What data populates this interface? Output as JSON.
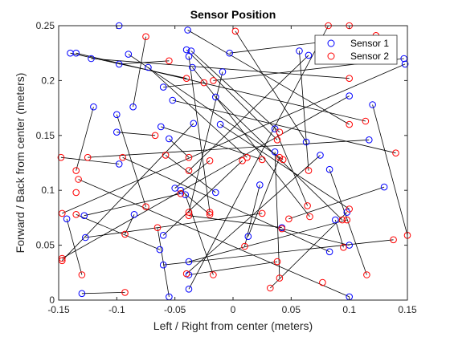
{
  "chart_data": {
    "type": "scatter",
    "title": "Sensor Position",
    "xlabel": "Left / Right from center (meters)",
    "ylabel": "Forward / Back from center (meters)",
    "xlim": [
      -0.15,
      0.15
    ],
    "ylim": [
      0,
      0.25
    ],
    "xticks": [
      "-0.15",
      "-0.1",
      "-0.05",
      "0",
      "0.05",
      "0.1",
      "0.15"
    ],
    "yticks": [
      "0",
      "0.05",
      "0.1",
      "0.15",
      "0.2",
      "0.25"
    ],
    "legend_position": "top-right",
    "connections": "line segments join each Sensor 1 point to its paired Sensor 2 point",
    "series": [
      {
        "name": "Sensor 1",
        "color": "#0000ff",
        "points": [
          [
            -0.098,
            0.25
          ],
          [
            -0.039,
            0.246
          ],
          [
            -0.14,
            0.225
          ],
          [
            -0.135,
            0.225
          ],
          [
            -0.122,
            0.22
          ],
          [
            -0.09,
            0.224
          ],
          [
            -0.04,
            0.228
          ],
          [
            -0.036,
            0.227
          ],
          [
            -0.038,
            0.222
          ],
          [
            -0.098,
            0.215
          ],
          [
            -0.073,
            0.212
          ],
          [
            -0.035,
            0.212
          ],
          [
            -0.009,
            0.208
          ],
          [
            -0.003,
            0.225
          ],
          [
            0.057,
            0.227
          ],
          [
            0.065,
            0.223
          ],
          [
            0.147,
            0.22
          ],
          [
            0.148,
            0.215
          ],
          [
            -0.12,
            0.176
          ],
          [
            -0.1,
            0.169
          ],
          [
            -0.1,
            0.153
          ],
          [
            -0.086,
            0.176
          ],
          [
            -0.06,
            0.194
          ],
          [
            -0.052,
            0.182
          ],
          [
            -0.034,
            0.161
          ],
          [
            -0.062,
            0.158
          ],
          [
            -0.055,
            0.147
          ],
          [
            -0.015,
            0.185
          ],
          [
            -0.011,
            0.16
          ],
          [
            0.036,
            0.156
          ],
          [
            0.063,
            0.144
          ],
          [
            0.1,
            0.186
          ],
          [
            0.12,
            0.178
          ],
          [
            0.117,
            0.146
          ],
          [
            0.036,
            0.135
          ],
          [
            -0.05,
            0.102
          ],
          [
            -0.045,
            0.1
          ],
          [
            -0.041,
            0.096
          ],
          [
            -0.015,
            0.098
          ],
          [
            0.023,
            0.105
          ],
          [
            0.075,
            0.132
          ],
          [
            0.083,
            0.119
          ],
          [
            0.13,
            0.103
          ],
          [
            -0.098,
            0.124
          ],
          [
            -0.085,
            0.078
          ],
          [
            -0.143,
            0.074
          ],
          [
            -0.128,
            0.077
          ],
          [
            -0.127,
            0.057
          ],
          [
            -0.06,
            0.059
          ],
          [
            -0.063,
            0.046
          ],
          [
            -0.06,
            0.032
          ],
          [
            0.013,
            0.058
          ],
          [
            0.042,
            0.066
          ],
          [
            0.1,
            0.05
          ],
          [
            0.098,
            0.08
          ],
          [
            0.088,
            0.073
          ],
          [
            0.083,
            0.044
          ],
          [
            -0.038,
            0.035
          ],
          [
            -0.038,
            0.023
          ],
          [
            -0.038,
            0.01
          ],
          [
            -0.13,
            0.006
          ],
          [
            -0.055,
            0.003
          ],
          [
            0.1,
            0.003
          ]
        ]
      },
      {
        "name": "Sensor 2",
        "color": "#ff0000",
        "points": [
          [
            -0.148,
            0.13
          ],
          [
            -0.075,
            0.24
          ],
          [
            -0.055,
            0.218
          ],
          [
            -0.04,
            0.202
          ],
          [
            -0.025,
            0.198
          ],
          [
            -0.017,
            0.2
          ],
          [
            0.002,
            0.245
          ],
          [
            0.082,
            0.25
          ],
          [
            0.1,
            0.25
          ],
          [
            0.123,
            0.241
          ],
          [
            0.1,
            0.202
          ],
          [
            0.038,
            0.146
          ],
          [
            0.04,
            0.153
          ],
          [
            0.1,
            0.16
          ],
          [
            0.114,
            0.163
          ],
          [
            -0.125,
            0.13
          ],
          [
            -0.135,
            0.118
          ],
          [
            -0.133,
            0.11
          ],
          [
            -0.135,
            0.098
          ],
          [
            -0.095,
            0.13
          ],
          [
            -0.067,
            0.15
          ],
          [
            -0.058,
            0.132
          ],
          [
            -0.038,
            0.13
          ],
          [
            -0.038,
            0.118
          ],
          [
            -0.02,
            0.127
          ],
          [
            0.008,
            0.127
          ],
          [
            0.012,
            0.13
          ],
          [
            0.025,
            0.128
          ],
          [
            0.04,
            0.13
          ],
          [
            0.043,
            0.128
          ],
          [
            0.065,
            0.118
          ],
          [
            0.14,
            0.134
          ],
          [
            -0.147,
            0.079
          ],
          [
            -0.135,
            0.078
          ],
          [
            -0.093,
            0.06
          ],
          [
            -0.075,
            0.085
          ],
          [
            -0.045,
            0.097
          ],
          [
            -0.038,
            0.08
          ],
          [
            -0.038,
            0.077
          ],
          [
            -0.02,
            0.078
          ],
          [
            -0.02,
            0.08
          ],
          [
            0.025,
            0.079
          ],
          [
            0.048,
            0.074
          ],
          [
            0.064,
            0.086
          ],
          [
            0.066,
            0.076
          ],
          [
            0.094,
            0.073
          ],
          [
            0.098,
            0.073
          ],
          [
            0.1,
            0.083
          ],
          [
            -0.147,
            0.038
          ],
          [
            -0.147,
            0.036
          ],
          [
            -0.065,
            0.066
          ],
          [
            0.01,
            0.049
          ],
          [
            0.038,
            0.035
          ],
          [
            0.042,
            0.065
          ],
          [
            0.138,
            0.055
          ],
          [
            0.15,
            0.059
          ],
          [
            0.095,
            0.048
          ],
          [
            -0.13,
            0.023
          ],
          [
            -0.093,
            0.007
          ],
          [
            -0.04,
            0.024
          ],
          [
            -0.017,
            0.023
          ],
          [
            0.032,
            0.011
          ],
          [
            0.04,
            0.02
          ],
          [
            0.077,
            0.016
          ],
          [
            0.115,
            0.023
          ]
        ]
      }
    ],
    "pairs": [
      [
        0,
        8
      ],
      [
        1,
        13
      ],
      [
        2,
        3
      ],
      [
        3,
        14
      ],
      [
        4,
        10
      ],
      [
        5,
        29
      ],
      [
        6,
        11
      ],
      [
        7,
        12
      ],
      [
        8,
        40
      ],
      [
        9,
        2
      ],
      [
        10,
        26
      ],
      [
        11,
        44
      ],
      [
        12,
        37
      ],
      [
        13,
        9
      ],
      [
        14,
        30
      ],
      [
        15,
        23
      ],
      [
        16,
        5
      ],
      [
        17,
        32
      ],
      [
        18,
        16
      ],
      [
        19,
        35
      ],
      [
        20,
        20
      ],
      [
        21,
        1
      ],
      [
        22,
        4
      ],
      [
        23,
        31
      ],
      [
        24,
        49
      ],
      [
        25,
        27
      ],
      [
        26,
        22
      ],
      [
        27,
        45
      ],
      [
        28,
        47
      ],
      [
        29,
        43
      ],
      [
        30,
        6
      ],
      [
        31,
        48
      ],
      [
        32,
        55
      ],
      [
        33,
        15
      ],
      [
        34,
        62
      ],
      [
        35,
        24
      ],
      [
        36,
        39
      ],
      [
        37,
        60
      ],
      [
        38,
        21
      ],
      [
        39,
        51
      ],
      [
        40,
        59
      ],
      [
        41,
        64
      ],
      [
        42,
        42
      ],
      [
        43,
        0
      ],
      [
        44,
        34
      ],
      [
        45,
        57
      ],
      [
        46,
        36
      ],
      [
        47,
        41
      ],
      [
        48,
        25
      ],
      [
        49,
        33
      ],
      [
        50,
        54
      ],
      [
        51,
        28
      ],
      [
        52,
        38
      ],
      [
        53,
        53
      ],
      [
        54,
        61
      ],
      [
        55,
        56
      ],
      [
        56,
        19
      ],
      [
        57,
        46
      ],
      [
        58,
        52
      ],
      [
        59,
        7
      ],
      [
        60,
        58
      ],
      [
        61,
        50
      ],
      [
        62,
        17
      ]
    ]
  }
}
